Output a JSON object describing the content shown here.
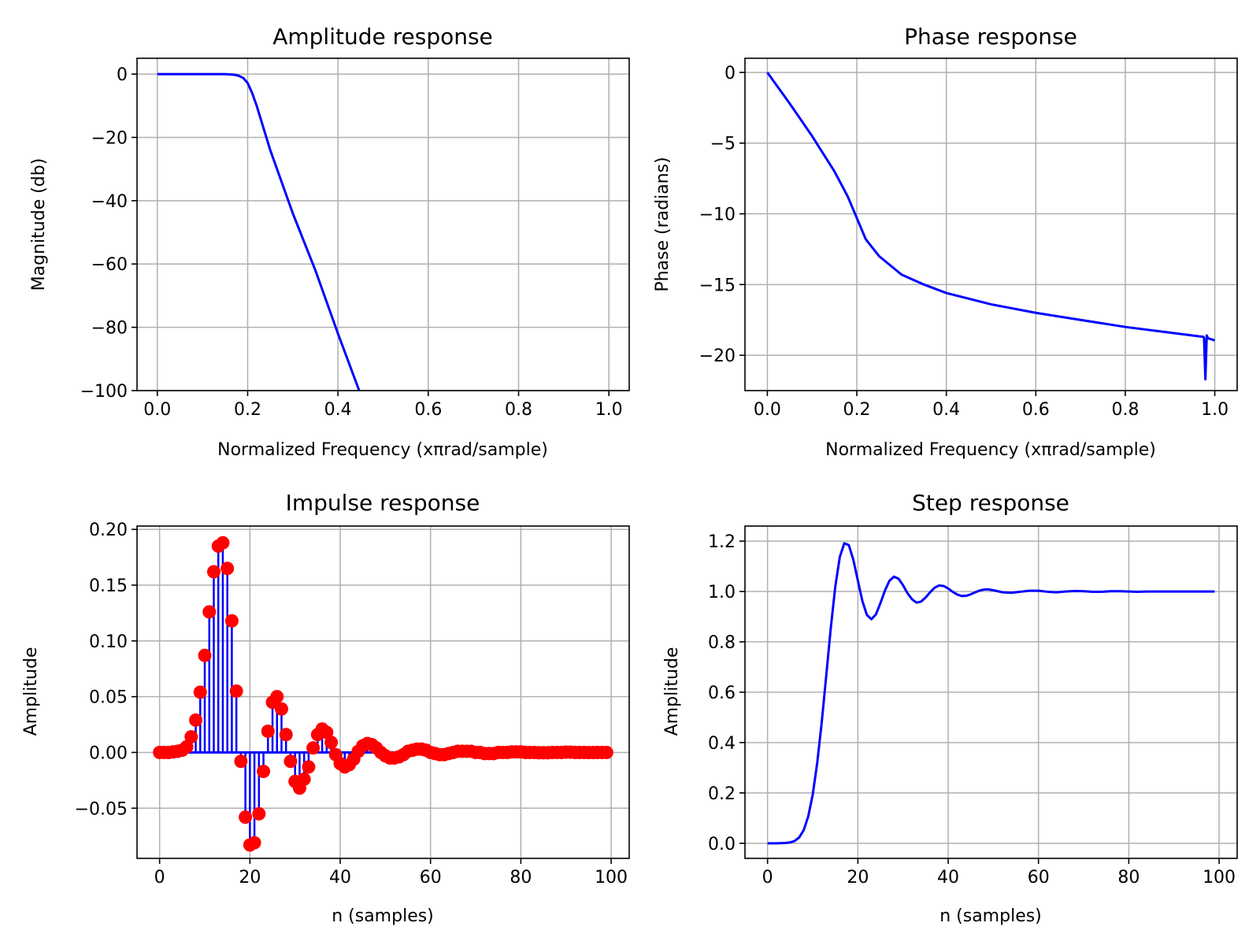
{
  "chart_data": [
    {
      "type": "line",
      "title": "Amplitude response",
      "xlabel": "Normalized Frequency (xπrad/sample)",
      "ylabel": "Magnitude (db)",
      "xlim": [
        -0.045,
        1.045
      ],
      "ylim": [
        -100,
        5
      ],
      "xticks": [
        "0.0",
        "0.2",
        "0.4",
        "0.6",
        "0.8",
        "1.0"
      ],
      "yticks": [
        "0",
        "−20",
        "−40",
        "−60",
        "−80",
        "−100"
      ],
      "grid": true,
      "color": "#0000ff",
      "series": [
        {
          "x": [
            0.0,
            0.05,
            0.1,
            0.15,
            0.17,
            0.18,
            0.19,
            0.2,
            0.21,
            0.22,
            0.25,
            0.3,
            0.35,
            0.4,
            0.447
          ],
          "y": [
            0,
            0,
            0,
            0,
            -0.2,
            -0.5,
            -1.2,
            -2.8,
            -6,
            -10,
            -24,
            -44,
            -62,
            -82,
            -100
          ]
        }
      ]
    },
    {
      "type": "line",
      "title": "Phase response",
      "xlabel": "Normalized Frequency (xπrad/sample)",
      "ylabel": "Phase (radians)",
      "xlim": [
        -0.05,
        1.05
      ],
      "ylim": [
        -22.5,
        1
      ],
      "xticks": [
        "0.0",
        "0.2",
        "0.4",
        "0.6",
        "0.8",
        "1.0"
      ],
      "yticks": [
        "0",
        "−5",
        "−10",
        "−15",
        "−20"
      ],
      "grid": true,
      "color": "#0000ff",
      "series": [
        {
          "x": [
            0.0,
            0.05,
            0.1,
            0.15,
            0.18,
            0.2,
            0.22,
            0.25,
            0.3,
            0.35,
            0.4,
            0.5,
            0.6,
            0.7,
            0.8,
            0.9,
            0.975,
            0.976,
            0.979,
            0.982,
            0.985,
            1.0
          ],
          "y": [
            0,
            -2.2,
            -4.5,
            -7.0,
            -8.8,
            -10.3,
            -11.8,
            -13.0,
            -14.3,
            -15.0,
            -15.6,
            -16.4,
            -17.0,
            -17.5,
            -18.0,
            -18.4,
            -18.7,
            -18.8,
            -21.7,
            -18.6,
            -18.8,
            -18.95
          ]
        }
      ]
    },
    {
      "type": "scatter",
      "title": "Impulse response",
      "xlabel": "n (samples)",
      "ylabel": "Amplitude",
      "xlim": [
        -5,
        104
      ],
      "ylim": [
        -0.095,
        0.203
      ],
      "xticks": [
        "0",
        "20",
        "40",
        "60",
        "80",
        "100"
      ],
      "yticks": [
        "0.20",
        "0.15",
        "0.10",
        "0.05",
        "0.00",
        "−0.05"
      ],
      "grid": true,
      "marker_color": "#ff0000",
      "stem_color": "#0000ff",
      "x": [
        0,
        1,
        2,
        3,
        4,
        5,
        6,
        7,
        8,
        9,
        10,
        11,
        12,
        13,
        14,
        15,
        16,
        17,
        18,
        19,
        20,
        21,
        22,
        23,
        24,
        25,
        26,
        27,
        28,
        29,
        30,
        31,
        32,
        33,
        34,
        35,
        36,
        37,
        38,
        39,
        40,
        41,
        42,
        43,
        44,
        45,
        46,
        47,
        48,
        49,
        50,
        51,
        52,
        53,
        54,
        55,
        56,
        57,
        58,
        59,
        60,
        61,
        62,
        63,
        64,
        65,
        66,
        67,
        68,
        69,
        70,
        71,
        72,
        73,
        74,
        75,
        76,
        77,
        78,
        79,
        80,
        81,
        82,
        83,
        84,
        85,
        86,
        87,
        88,
        89,
        90,
        91,
        92,
        93,
        94,
        95,
        96,
        97,
        98,
        99
      ],
      "values": [
        0.0,
        0.0,
        0.0,
        0.0005,
        0.001,
        0.002,
        0.005,
        0.014,
        0.029,
        0.054,
        0.087,
        0.126,
        0.162,
        0.185,
        0.188,
        0.165,
        0.118,
        0.055,
        -0.008,
        -0.058,
        -0.083,
        -0.081,
        -0.055,
        -0.017,
        0.019,
        0.045,
        0.05,
        0.039,
        0.016,
        -0.008,
        -0.026,
        -0.032,
        -0.024,
        -0.013,
        0.004,
        0.016,
        0.021,
        0.018,
        0.009,
        -0.002,
        -0.01,
        -0.013,
        -0.011,
        -0.006,
        0.001,
        0.006,
        0.008,
        0.007,
        0.004,
        0.0,
        -0.003,
        -0.005,
        -0.005,
        -0.004,
        -0.002,
        0.001,
        0.002,
        0.003,
        0.003,
        0.002,
        0.0,
        -0.001,
        -0.002,
        -0.002,
        -0.001,
        0.0,
        0.001,
        0.001,
        0.001,
        0.001,
        0.0,
        0.0,
        -0.001,
        -0.001,
        -0.001,
        0.0,
        0.0,
        0.0,
        0.0005,
        0.0005,
        0.0005,
        0.0,
        0.0,
        0.0,
        -0.0003,
        -0.0003,
        -0.0003,
        0.0,
        0.0,
        0.0,
        0.0002,
        0.0002,
        0.0,
        0.0,
        0.0,
        -0.0001,
        -0.0001,
        0.0,
        0.0,
        0.0
      ]
    },
    {
      "type": "line",
      "title": "Step response",
      "xlabel": "n (samples)",
      "ylabel": "Amplitude",
      "xlim": [
        -5,
        104
      ],
      "ylim": [
        -0.06,
        1.26
      ],
      "xticks": [
        "0",
        "20",
        "40",
        "60",
        "80",
        "100"
      ],
      "yticks": [
        "1.2",
        "1.0",
        "0.8",
        "0.6",
        "0.4",
        "0.2",
        "0.0"
      ],
      "grid": true,
      "color": "#0000ff",
      "series": [
        {
          "x": [
            0,
            1,
            2,
            3,
            4,
            5,
            6,
            7,
            8,
            9,
            10,
            11,
            12,
            13,
            14,
            15,
            16,
            17,
            18,
            19,
            20,
            21,
            22,
            23,
            24,
            25,
            26,
            27,
            28,
            29,
            30,
            31,
            32,
            33,
            34,
            35,
            36,
            37,
            38,
            39,
            40,
            41,
            42,
            43,
            44,
            45,
            46,
            47,
            48,
            49,
            50,
            52,
            54,
            56,
            58,
            60,
            62,
            64,
            66,
            68,
            70,
            72,
            74,
            76,
            78,
            80,
            82,
            84,
            86,
            88,
            90,
            92,
            94,
            96,
            99
          ],
          "y": [
            0.0,
            0.0,
            0.0,
            0.0005,
            0.0015,
            0.0035,
            0.009,
            0.023,
            0.052,
            0.106,
            0.193,
            0.319,
            0.481,
            0.666,
            0.854,
            1.019,
            1.137,
            1.192,
            1.184,
            1.126,
            1.043,
            0.962,
            0.907,
            0.89,
            0.909,
            0.954,
            1.004,
            1.043,
            1.059,
            1.051,
            1.025,
            0.993,
            0.969,
            0.956,
            0.96,
            0.976,
            0.997,
            1.015,
            1.024,
            1.022,
            1.012,
            0.999,
            0.988,
            0.982,
            0.983,
            0.989,
            0.997,
            1.004,
            1.008,
            1.008,
            1.005,
            0.997,
            0.995,
            0.999,
            1.003,
            1.003,
            0.999,
            0.997,
            1.0,
            1.002,
            1.001,
            0.999,
            0.999,
            1.001,
            1.001,
            1.0,
            0.999,
            1.0,
            1.0,
            1.0,
            1.0,
            1.0,
            1.0,
            1.0,
            1.0
          ]
        }
      ]
    }
  ]
}
